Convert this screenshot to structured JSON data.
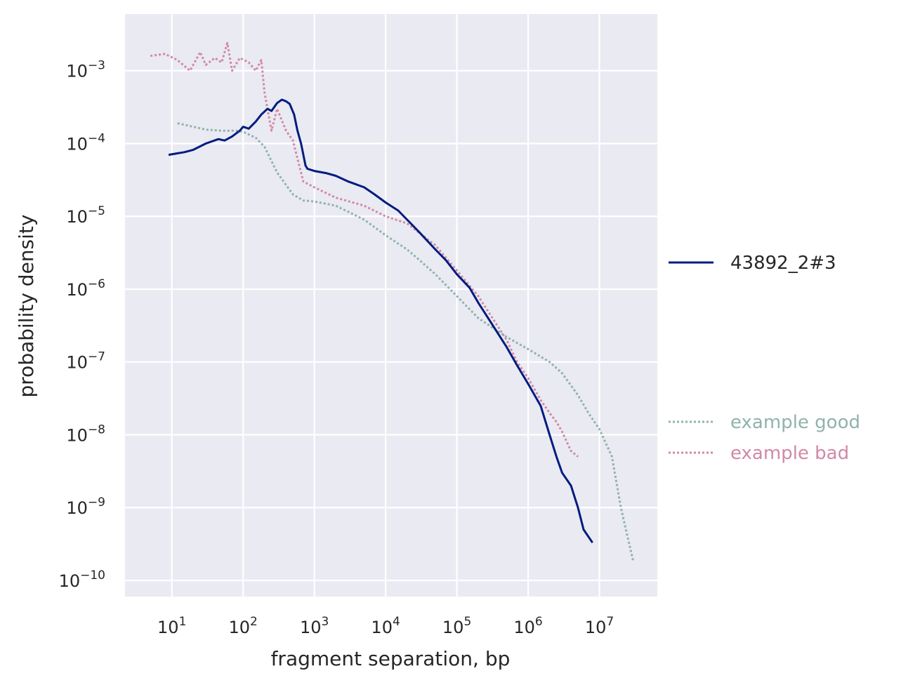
{
  "chart_data": {
    "type": "line",
    "xlabel": "fragment separation, bp",
    "ylabel": "probability density",
    "xscale": "log",
    "yscale": "log",
    "xlim": [
      2.2,
      65000000
    ],
    "ylim": [
      6e-11,
      0.006
    ],
    "grid": true,
    "x_tick_base": "10",
    "x_ticks": [
      1,
      2,
      3,
      4,
      5,
      6,
      7
    ],
    "y_tick_base": "10",
    "y_ticks": [
      -3,
      -4,
      -5,
      -6,
      -7,
      -8,
      -9,
      -10
    ],
    "series": [
      {
        "name": "43892_2#3",
        "color": "#001c7f",
        "style": "solid",
        "legend_group": "top",
        "points": [
          [
            9,
            7e-05
          ],
          [
            15,
            7.6e-05
          ],
          [
            20,
            8.2e-05
          ],
          [
            30,
            0.0001
          ],
          [
            45,
            0.000115
          ],
          [
            55,
            0.00011
          ],
          [
            70,
            0.000125
          ],
          [
            90,
            0.00015
          ],
          [
            100,
            0.00017
          ],
          [
            120,
            0.00016
          ],
          [
            150,
            0.0002
          ],
          [
            180,
            0.00025
          ],
          [
            220,
            0.0003
          ],
          [
            250,
            0.00028
          ],
          [
            300,
            0.00036
          ],
          [
            350,
            0.0004
          ],
          [
            400,
            0.00038
          ],
          [
            450,
            0.00035
          ],
          [
            520,
            0.00025
          ],
          [
            580,
            0.00015
          ],
          [
            650,
            0.0001
          ],
          [
            750,
            5e-05
          ],
          [
            800,
            4.5e-05
          ],
          [
            1000,
            4.2e-05
          ],
          [
            1500,
            3.9e-05
          ],
          [
            2000,
            3.6e-05
          ],
          [
            3000,
            3e-05
          ],
          [
            5000,
            2.5e-05
          ],
          [
            7000,
            2e-05
          ],
          [
            10000,
            1.55e-05
          ],
          [
            15000,
            1.2e-05
          ],
          [
            20000,
            9e-06
          ],
          [
            30000,
            6e-06
          ],
          [
            50000,
            3.5e-06
          ],
          [
            70000,
            2.5e-06
          ],
          [
            100000,
            1.6e-06
          ],
          [
            150000,
            1.05e-06
          ],
          [
            200000,
            6.5e-07
          ],
          [
            300000,
            3.5e-07
          ],
          [
            500000,
            1.6e-07
          ],
          [
            700000,
            9e-08
          ],
          [
            1000000,
            5e-08
          ],
          [
            1500000,
            2.5e-08
          ],
          [
            2000000,
            1e-08
          ],
          [
            2500000,
            5e-09
          ],
          [
            3000000,
            3e-09
          ],
          [
            4000000,
            2e-09
          ],
          [
            5000000,
            1e-09
          ],
          [
            6000000,
            5e-10
          ],
          [
            8000000,
            3.3e-10
          ]
        ]
      },
      {
        "name": "example good",
        "color": "#8fb3ac",
        "style": "dotted",
        "legend_group": "bottom",
        "points": [
          [
            12,
            0.00019
          ],
          [
            20,
            0.00017
          ],
          [
            30,
            0.000155
          ],
          [
            50,
            0.00015
          ],
          [
            80,
            0.00015
          ],
          [
            100,
            0.000145
          ],
          [
            150,
            0.00012
          ],
          [
            200,
            9e-05
          ],
          [
            300,
            4e-05
          ],
          [
            500,
            2e-05
          ],
          [
            700,
            1.65e-05
          ],
          [
            1000,
            1.6e-05
          ],
          [
            2000,
            1.4e-05
          ],
          [
            5000,
            9e-06
          ],
          [
            10000,
            5.5e-06
          ],
          [
            20000,
            3.5e-06
          ],
          [
            30000,
            2.5e-06
          ],
          [
            50000,
            1.6e-06
          ],
          [
            100000,
            8e-07
          ],
          [
            200000,
            4e-07
          ],
          [
            500000,
            2.2e-07
          ],
          [
            1000000,
            1.5e-07
          ],
          [
            2000000,
            1e-07
          ],
          [
            3000000,
            7e-08
          ],
          [
            5000000,
            3.5e-08
          ],
          [
            7000000,
            2e-08
          ],
          [
            10000000,
            1.2e-08
          ],
          [
            15000000,
            5e-09
          ],
          [
            20000000,
            1e-09
          ],
          [
            30000000,
            1.8e-10
          ]
        ]
      },
      {
        "name": "example bad",
        "color": "#d189a6",
        "style": "dotted",
        "legend_group": "bottom",
        "points": [
          [
            5,
            0.0016
          ],
          [
            8,
            0.0017
          ],
          [
            12,
            0.0014
          ],
          [
            18,
            0.001
          ],
          [
            25,
            0.0018
          ],
          [
            30,
            0.0012
          ],
          [
            40,
            0.0015
          ],
          [
            50,
            0.0013
          ],
          [
            60,
            0.0024
          ],
          [
            70,
            0.001
          ],
          [
            90,
            0.0015
          ],
          [
            120,
            0.0013
          ],
          [
            150,
            0.001
          ],
          [
            180,
            0.0014
          ],
          [
            200,
            0.0005
          ],
          [
            250,
            0.00015
          ],
          [
            300,
            0.0003
          ],
          [
            400,
            0.00015
          ],
          [
            500,
            0.00011
          ],
          [
            700,
            3e-05
          ],
          [
            1000,
            2.5e-05
          ],
          [
            2000,
            1.8e-05
          ],
          [
            5000,
            1.4e-05
          ],
          [
            10000,
            1e-05
          ],
          [
            20000,
            8e-06
          ],
          [
            50000,
            4e-06
          ],
          [
            100000,
            1.8e-06
          ],
          [
            200000,
            8e-07
          ],
          [
            500000,
            2e-07
          ],
          [
            700000,
            1e-07
          ],
          [
            1000000,
            6e-08
          ],
          [
            1500000,
            3e-08
          ],
          [
            2000000,
            2e-08
          ],
          [
            2500000,
            1.5e-08
          ],
          [
            3000000,
            1.1e-08
          ],
          [
            4000000,
            6e-09
          ],
          [
            5000000,
            5e-09
          ]
        ]
      }
    ]
  }
}
